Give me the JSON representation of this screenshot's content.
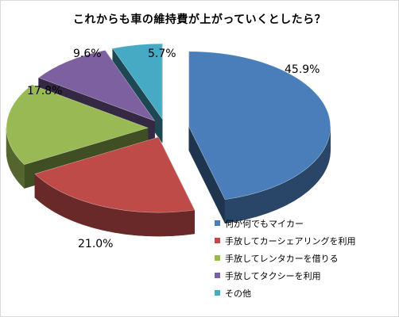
{
  "chart_data": {
    "type": "pie",
    "title": "これからも車の維持費が上がっていくとしたら？",
    "slices": [
      {
        "label": "何が何でもマイカー",
        "value": 45.9,
        "value_label": "45.9%",
        "color": "#4a7ebb"
      },
      {
        "label": "手放してカーシェアリングを利用",
        "value": 21.0,
        "value_label": "21.0%",
        "color": "#be4b48"
      },
      {
        "label": "手放してレンタカーを借りる",
        "value": 17.8,
        "value_label": "17.8%",
        "color": "#98b954"
      },
      {
        "label": "手放してタクシーを利用",
        "value": 9.6,
        "value_label": "9.6%",
        "color": "#7d60a0"
      },
      {
        "label": "その他",
        "value": 5.7,
        "value_label": "5.7%",
        "color": "#46aac5"
      }
    ],
    "style": "3d-exploded",
    "legend_position": "bottom-right"
  }
}
